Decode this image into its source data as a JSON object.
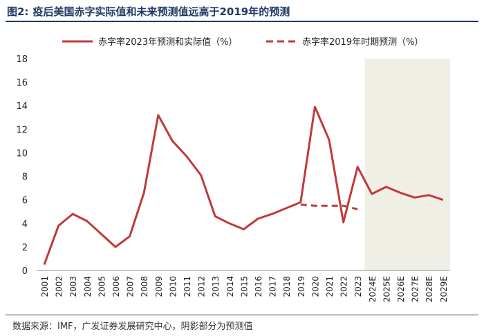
{
  "figure": {
    "number": "图2:",
    "title": "疫后美国赤字实际值和未来预测值远高于2019年的预测",
    "source": "数据来源：IMF，广发证券发展研究中心，阴影部分为预测值"
  },
  "chart_data": {
    "type": "line",
    "title": "疫后美国赤字实际值和未来预测值远高于2019年的预测",
    "categories": [
      "2001",
      "2002",
      "2003",
      "2004",
      "2005",
      "2006",
      "2007",
      "2008",
      "2009",
      "2010",
      "2011",
      "2012",
      "2013",
      "2014",
      "2015",
      "2016",
      "2017",
      "2018",
      "2019",
      "2020",
      "2021",
      "2022",
      "2023",
      "2024E",
      "2025E",
      "2026E",
      "2027E",
      "2028E",
      "2029E"
    ],
    "ylim": [
      0,
      18
    ],
    "yticks": [
      0,
      2,
      4,
      6,
      8,
      10,
      12,
      14,
      16,
      18
    ],
    "shaded_from": "2024E",
    "shaded_to": "2029E",
    "legend_position": "top",
    "grid": false,
    "series": [
      {
        "name": "赤字率2023年预测和实际值（%）",
        "style": "solid",
        "color": "#c0393b",
        "values": [
          0.5,
          3.8,
          4.8,
          4.2,
          3.1,
          2.0,
          2.9,
          6.6,
          13.2,
          11.0,
          9.7,
          8.1,
          4.6,
          4.0,
          3.5,
          4.4,
          4.8,
          5.3,
          5.8,
          13.9,
          11.1,
          4.1,
          8.8,
          6.5,
          7.1,
          6.6,
          6.2,
          6.4,
          6.0
        ]
      },
      {
        "name": "赤字率2019年时期预测（%）",
        "style": "dashed",
        "color": "#c0393b",
        "values": [
          null,
          null,
          null,
          null,
          null,
          null,
          null,
          null,
          null,
          null,
          null,
          null,
          null,
          null,
          null,
          null,
          null,
          null,
          5.6,
          5.5,
          5.5,
          5.5,
          5.2,
          null,
          null,
          null,
          null,
          null,
          null
        ]
      }
    ]
  }
}
